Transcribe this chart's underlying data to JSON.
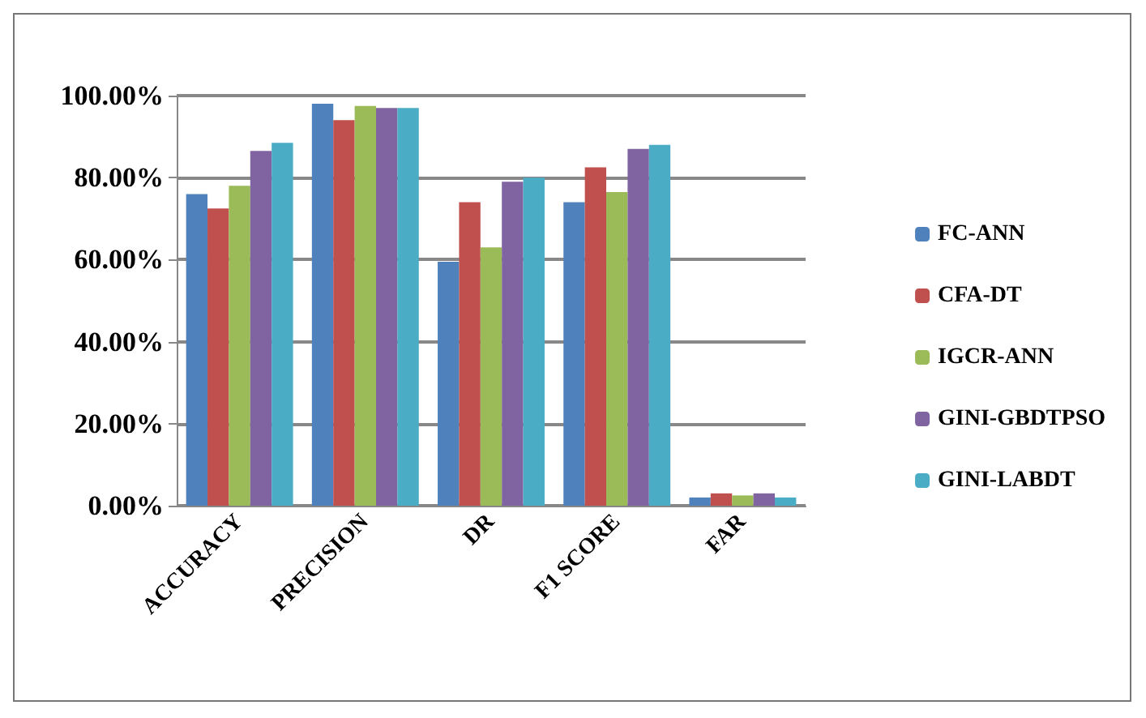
{
  "chart_data": {
    "type": "bar",
    "categories": [
      "ACCURACY",
      "PRECISION",
      "DR",
      "F1 SCORE",
      "FAR"
    ],
    "series": [
      {
        "name": "FC-ANN",
        "color": "#4f81bd",
        "values": [
          76,
          98,
          59.5,
          74,
          2
        ]
      },
      {
        "name": "CFA-DT",
        "color": "#c0504d",
        "values": [
          72.5,
          94,
          74,
          82.5,
          3
        ]
      },
      {
        "name": "IGCR-ANN",
        "color": "#9bbb59",
        "values": [
          78,
          97.5,
          63,
          76.5,
          2.5
        ]
      },
      {
        "name": "GINI-GBDTPSO",
        "color": "#8064a2",
        "values": [
          86.5,
          97,
          79,
          87,
          3
        ]
      },
      {
        "name": "GINI-LABDT",
        "color": "#4bacc6",
        "values": [
          88.5,
          97,
          80,
          88,
          2
        ]
      }
    ],
    "ylim": [
      0,
      100
    ],
    "yticks": [
      {
        "value": 0,
        "label": "0.00%"
      },
      {
        "value": 20,
        "label": "20.00%"
      },
      {
        "value": 40,
        "label": "40.00%"
      },
      {
        "value": 60,
        "label": "60.00%"
      },
      {
        "value": 80,
        "label": "80.00%"
      },
      {
        "value": 100,
        "label": "100.00%"
      }
    ],
    "grid": "y",
    "legend": "right"
  }
}
